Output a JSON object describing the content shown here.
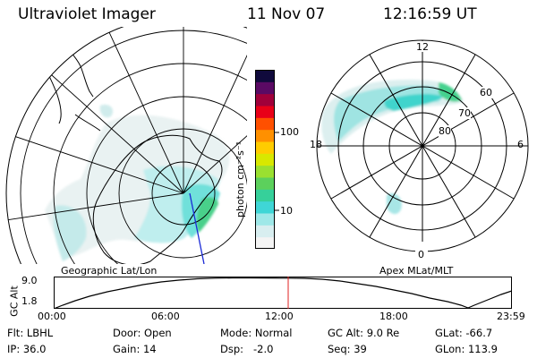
{
  "header": {
    "instrument": "Ultraviolet Imager",
    "date": "11 Nov 07",
    "time": "12:16:59 UT"
  },
  "colorbar": {
    "axis_label": "photon cm⁻²s⁻¹",
    "ticks": [
      {
        "label": "100",
        "value": 100
      },
      {
        "label": "10",
        "value": 10
      }
    ],
    "range": [
      2.5,
      600
    ],
    "colors": [
      "#f4f4f4",
      "#d8eef0",
      "#9ee8e8",
      "#3fd6d6",
      "#36d09a",
      "#5cd05c",
      "#9ae030",
      "#d8e800",
      "#ffcc00",
      "#ff9000",
      "#ff5000",
      "#e80018",
      "#a0003a",
      "#5a0a64",
      "#100a3c"
    ]
  },
  "left_map": {
    "caption": "Geographic Lat/Lon"
  },
  "right_map": {
    "caption": "Apex MLat/MLT",
    "mlt_labels": [
      "12",
      "18",
      "6",
      "0"
    ],
    "mlat_labels": [
      "60",
      "70",
      "80"
    ]
  },
  "alt_plot": {
    "ylabel": "GC Alt",
    "yticks": [
      "9.0",
      "1.8"
    ],
    "xticks": [
      "00:00",
      "06:00",
      "12:00",
      "18:00",
      "23:59"
    ],
    "current_time_hours": 12.28
  },
  "info": {
    "filter": "Flt: LBHL",
    "ip": "IP: 36.0",
    "door": "Door: Open",
    "gain": "Gain: 14",
    "mode": "Mode: Normal",
    "dsp": "Dsp:   -2.0",
    "gc_alt": "GC Alt: 9.0 Re",
    "seq": "Seq: 39",
    "glat": "GLat: -66.7",
    "glon": "GLon: 113.9"
  }
}
